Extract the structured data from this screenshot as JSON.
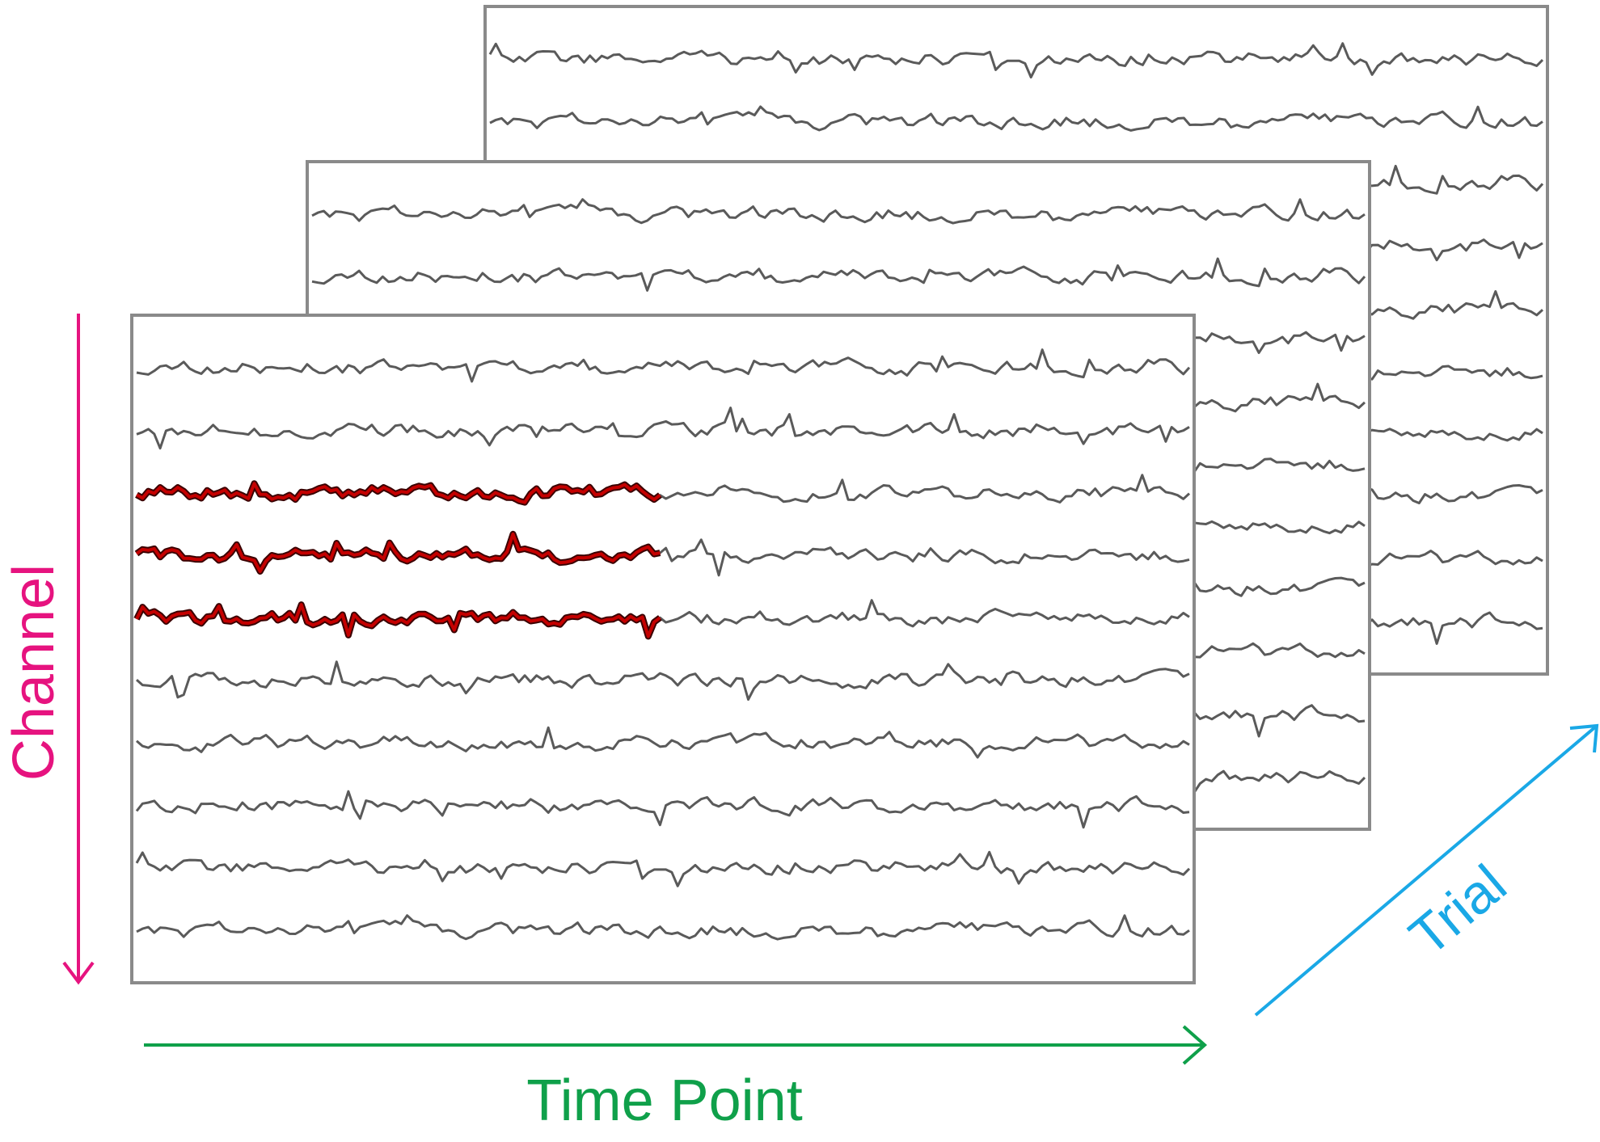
{
  "labels": {
    "channel": "Channel",
    "time_point": "Time Point",
    "trial": "Trial"
  },
  "colors": {
    "channel": "#e6137f",
    "time_point": "#0fa04a",
    "trial": "#1aa8e6",
    "signal": "#5a5a5a",
    "highlight": "#c40000",
    "frame": "#8a8a8a"
  },
  "panels": [
    {
      "name": "trial-panel-back",
      "channels": 10,
      "highlighted_channels": []
    },
    {
      "name": "trial-panel-middle",
      "channels": 10,
      "highlighted_channels": []
    },
    {
      "name": "trial-panel-front",
      "channels": 10,
      "highlighted_channels": [
        3,
        4,
        5
      ],
      "highlight_fraction": 0.5
    }
  ]
}
